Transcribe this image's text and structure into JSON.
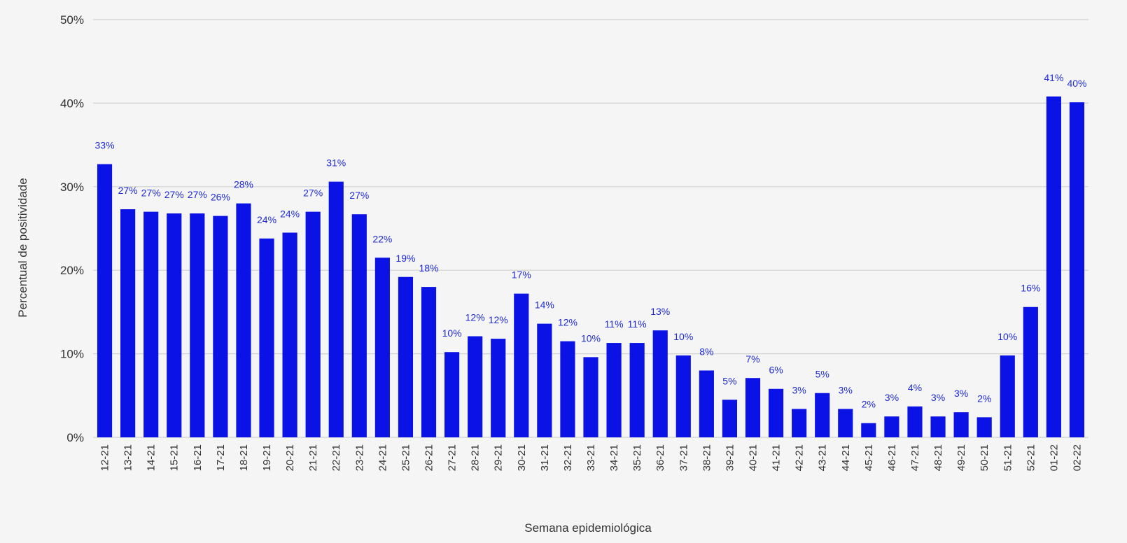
{
  "colors": {
    "bar": "#0b12e6",
    "data_label": "#1f2bd9",
    "grid": "#d0d0d0",
    "axis_text": "#333333",
    "background": "#f5f5f5"
  },
  "chart_data": {
    "type": "bar",
    "title": "",
    "xlabel": "Semana epidemiológica",
    "ylabel": "Percentual de positividade",
    "ylim": [
      0,
      50
    ],
    "y_ticks": [
      0,
      10,
      20,
      30,
      40,
      50
    ],
    "y_tick_labels": [
      "0%",
      "10%",
      "20%",
      "30%",
      "40%",
      "50%"
    ],
    "grid": true,
    "categories": [
      "12-21",
      "13-21",
      "14-21",
      "15-21",
      "16-21",
      "17-21",
      "18-21",
      "19-21",
      "20-21",
      "21-21",
      "22-21",
      "23-21",
      "24-21",
      "25-21",
      "26-21",
      "27-21",
      "28-21",
      "29-21",
      "30-21",
      "31-21",
      "32-21",
      "33-21",
      "34-21",
      "35-21",
      "36-21",
      "37-21",
      "38-21",
      "39-21",
      "40-21",
      "41-21",
      "42-21",
      "43-21",
      "44-21",
      "45-21",
      "46-21",
      "47-21",
      "48-21",
      "49-21",
      "50-21",
      "51-21",
      "52-21",
      "01-22",
      "02-22"
    ],
    "values": [
      32.7,
      27.3,
      27.0,
      26.8,
      26.8,
      26.5,
      28.0,
      23.8,
      24.5,
      27.0,
      30.6,
      26.7,
      21.5,
      19.2,
      18.0,
      10.2,
      12.1,
      11.8,
      17.2,
      13.6,
      11.5,
      9.6,
      11.3,
      11.3,
      12.8,
      9.8,
      8.0,
      4.5,
      7.1,
      5.8,
      3.4,
      5.3,
      3.4,
      1.7,
      2.5,
      3.7,
      2.5,
      3.0,
      2.4,
      9.8,
      15.6,
      40.8,
      40.1
    ],
    "data_labels": [
      "33%",
      "27%",
      "27%",
      "27%",
      "27%",
      "26%",
      "28%",
      "24%",
      "24%",
      "27%",
      "31%",
      "27%",
      "22%",
      "19%",
      "18%",
      "10%",
      "12%",
      "12%",
      "17%",
      "14%",
      "12%",
      "10%",
      "11%",
      "11%",
      "13%",
      "10%",
      "8%",
      "5%",
      "7%",
      "6%",
      "3%",
      "5%",
      "3%",
      "2%",
      "3%",
      "4%",
      "3%",
      "3%",
      "2%",
      "10%",
      "16%",
      "41%",
      "40%"
    ],
    "legend": "none"
  }
}
